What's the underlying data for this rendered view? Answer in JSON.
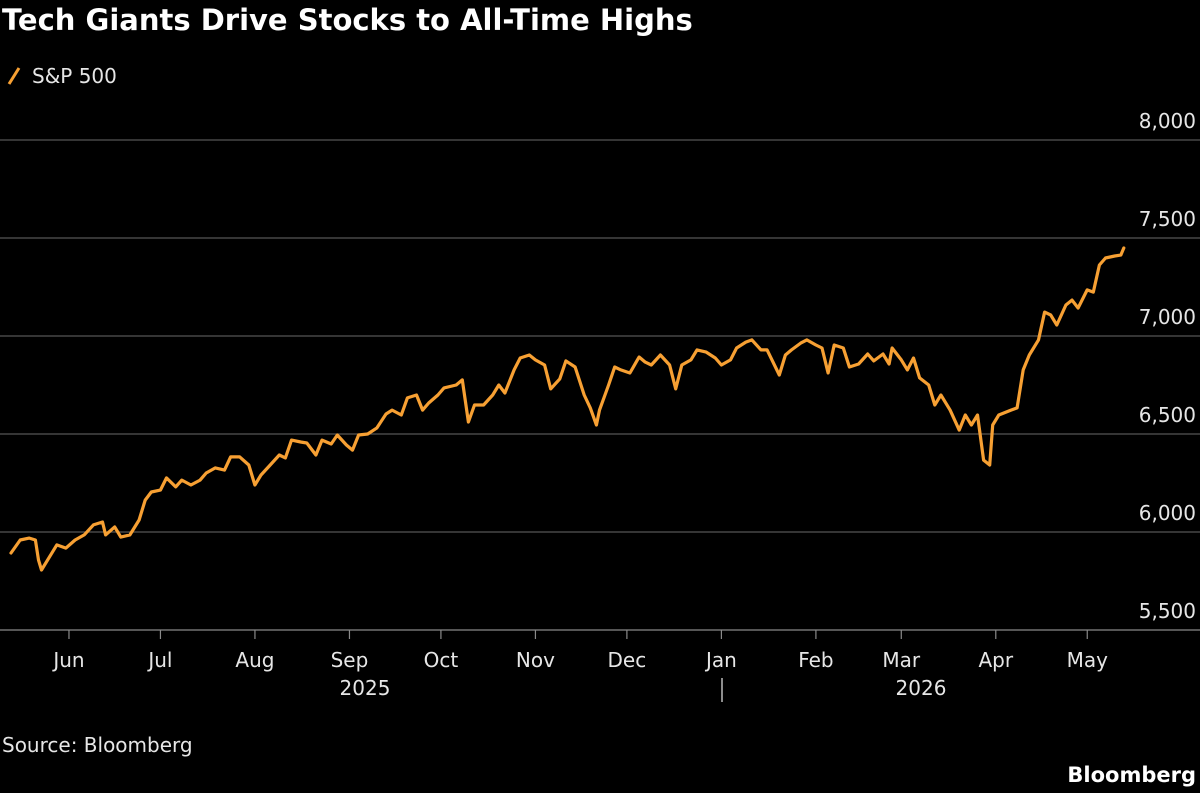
{
  "chart_data": {
    "type": "line",
    "title": "Tech Giants Drive Stocks to All-Time Highs",
    "source": "Source: Bloomberg",
    "brand": "Bloomberg",
    "year_labels": [
      "2025",
      "2026"
    ],
    "xlim": [
      -20,
      370
    ],
    "xticks": [
      {
        "value": 0,
        "label": "Jun"
      },
      {
        "value": 30,
        "label": "Jul"
      },
      {
        "value": 61,
        "label": "Aug"
      },
      {
        "value": 92,
        "label": "Sep"
      },
      {
        "value": 122,
        "label": "Oct"
      },
      {
        "value": 153,
        "label": "Nov"
      },
      {
        "value": 183,
        "label": "Dec"
      },
      {
        "value": 214,
        "label": "Jan"
      },
      {
        "value": 245,
        "label": "Feb"
      },
      {
        "value": 273,
        "label": "Mar"
      },
      {
        "value": 304,
        "label": "Apr"
      },
      {
        "value": 334,
        "label": "May"
      }
    ],
    "ylim": [
      5500,
      8000
    ],
    "yticks": [
      {
        "value": 5500,
        "label": "5,500"
      },
      {
        "value": 6000,
        "label": "6,000"
      },
      {
        "value": 6500,
        "label": "6,500"
      },
      {
        "value": 7000,
        "label": "7,000"
      },
      {
        "value": 7500,
        "label": "7,500"
      },
      {
        "value": 8000,
        "label": "8,000"
      }
    ],
    "grid": true,
    "x": [
      -19,
      -16,
      -13,
      -11,
      -10,
      -9,
      -6,
      -4,
      -1,
      2,
      5,
      8,
      11,
      12,
      15,
      17,
      20,
      23,
      25,
      27,
      30,
      32,
      35,
      37,
      40,
      43,
      45,
      48,
      51,
      53,
      56,
      59,
      61,
      63,
      66,
      69,
      71,
      73,
      76,
      78,
      81,
      83,
      86,
      88,
      91,
      93,
      95,
      98,
      101,
      104,
      106,
      109,
      111,
      114,
      116,
      118,
      121,
      123,
      127,
      129,
      131,
      133,
      136,
      139,
      141,
      143,
      146,
      148,
      151,
      153,
      156,
      158,
      161,
      163,
      166,
      169,
      171,
      173,
      174,
      177,
      179,
      181,
      184,
      187,
      189,
      191,
      194,
      197,
      199,
      201,
      204,
      206,
      209,
      212,
      214,
      217,
      219,
      222,
      224,
      227,
      229,
      233,
      235,
      237,
      240,
      242,
      245,
      247,
      249,
      251,
      254,
      256,
      259,
      262,
      264,
      267,
      269,
      270,
      273,
      275,
      277,
      279,
      282,
      284,
      286,
      289,
      292,
      294,
      296,
      298,
      300,
      302,
      303,
      305,
      309,
      311,
      313,
      315,
      318,
      320,
      322,
      324,
      327,
      329,
      331,
      334,
      336,
      338,
      340,
      343,
      345,
      346
    ],
    "series": [
      {
        "name": "S&P 500",
        "color": "#f7a033",
        "values": [
          5893,
          5959,
          5969,
          5959,
          5857,
          5806,
          5883,
          5934,
          5918,
          5959,
          5985,
          6036,
          6051,
          5985,
          6026,
          5974,
          5985,
          6061,
          6163,
          6204,
          6214,
          6276,
          6230,
          6265,
          6240,
          6265,
          6301,
          6327,
          6316,
          6383,
          6383,
          6342,
          6240,
          6291,
          6342,
          6393,
          6378,
          6469,
          6459,
          6454,
          6393,
          6469,
          6449,
          6495,
          6444,
          6418,
          6495,
          6500,
          6531,
          6602,
          6622,
          6597,
          6684,
          6699,
          6622,
          6658,
          6699,
          6735,
          6750,
          6776,
          6561,
          6648,
          6648,
          6699,
          6750,
          6709,
          6827,
          6888,
          6903,
          6878,
          6852,
          6730,
          6781,
          6873,
          6842,
          6699,
          6633,
          6546,
          6622,
          6750,
          6842,
          6827,
          6811,
          6893,
          6867,
          6852,
          6903,
          6852,
          6730,
          6852,
          6878,
          6929,
          6918,
          6888,
          6852,
          6878,
          6939,
          6969,
          6980,
          6929,
          6929,
          6801,
          6903,
          6929,
          6964,
          6980,
          6954,
          6939,
          6811,
          6954,
          6939,
          6842,
          6857,
          6908,
          6873,
          6908,
          6857,
          6939,
          6878,
          6827,
          6888,
          6786,
          6750,
          6648,
          6699,
          6622,
          6520,
          6597,
          6546,
          6597,
          6367,
          6342,
          6546,
          6597,
          6622,
          6633,
          6827,
          6903,
          6980,
          7122,
          7107,
          7056,
          7158,
          7183,
          7143,
          7235,
          7224,
          7362,
          7398,
          7408,
          7413,
          7449
        ]
      }
    ]
  }
}
